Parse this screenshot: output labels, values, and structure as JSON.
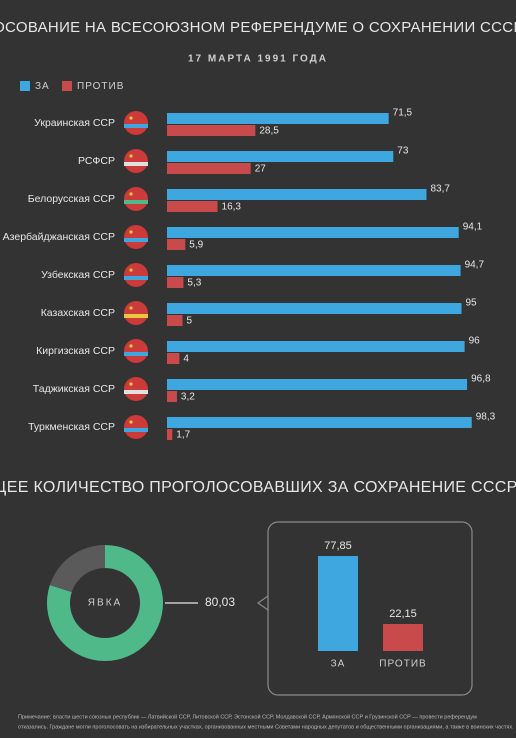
{
  "chart_data": [
    {
      "type": "hbar",
      "title": "ГОЛОСОВАНИЕ НА ВСЕСОЮЗНОМ РЕФЕРЕНДУМЕ О СОХРАНЕНИИ СССР (%)",
      "subtitle": "17 МАРТА 1991 ГОДА",
      "categories": [
        "Украинская ССР",
        "РСФСР",
        "Белорусская ССР",
        "Азербайджанская ССР",
        "Узбекская ССР",
        "Казахская ССР",
        "Киргизская ССР",
        "Таджикская ССР",
        "Туркменская ССР"
      ],
      "series": [
        {
          "name": "ЗА",
          "color": "#3ea7e0",
          "values": [
            71.5,
            73,
            83.7,
            94.1,
            94.7,
            95,
            96,
            96.8,
            98.3
          ],
          "value_labels": [
            "71,5",
            "73",
            "83,7",
            "94,1",
            "94,7",
            "95",
            "96",
            "96,8",
            "98,3"
          ]
        },
        {
          "name": "ПРОТИВ",
          "color": "#c94a4a",
          "values": [
            28.5,
            27,
            16.3,
            5.9,
            5.3,
            5,
            4,
            3.2,
            1.7
          ],
          "value_labels": [
            "28,5",
            "27",
            "16,3",
            "5,9",
            "5,3",
            "5",
            "4",
            "3,2",
            "1,7"
          ]
        }
      ],
      "xlim": [
        0,
        100
      ],
      "legend": "top-left"
    },
    {
      "type": "donut",
      "title": "ОБЩЕЕ КОЛИЧЕСТВО ПРОГОЛОСОВАВШИХ ЗА СОХРАНЕНИЕ СССР (%)",
      "categories": [
        "ЯВКА",
        null
      ],
      "values": [
        80.03,
        19.97
      ],
      "value_labels": [
        "80,03",
        null
      ],
      "colors": [
        "#4fb98a",
        "#5a5a5a"
      ]
    },
    {
      "type": "bar",
      "categories": [
        "ЗА",
        "ПРОТИВ"
      ],
      "values": [
        77.85,
        22.15
      ],
      "value_labels": [
        "77,85",
        "22,15"
      ],
      "colors": [
        "#3ea7e0",
        "#c94a4a"
      ],
      "ylim": [
        0,
        100
      ]
    }
  ],
  "note": [
    "Примечание: власти шести союзных республик — Латвийской ССР, Литовской ССР, Эстонской ССР, Молдавской ССР, Армянской ССР и Грузинской ССР — провести референдум",
    "отказались. Граждане могли проголосовать на избирательных участках, организованных местными Советами народных депутатов и общественными организациями, а также в воинских частях."
  ]
}
